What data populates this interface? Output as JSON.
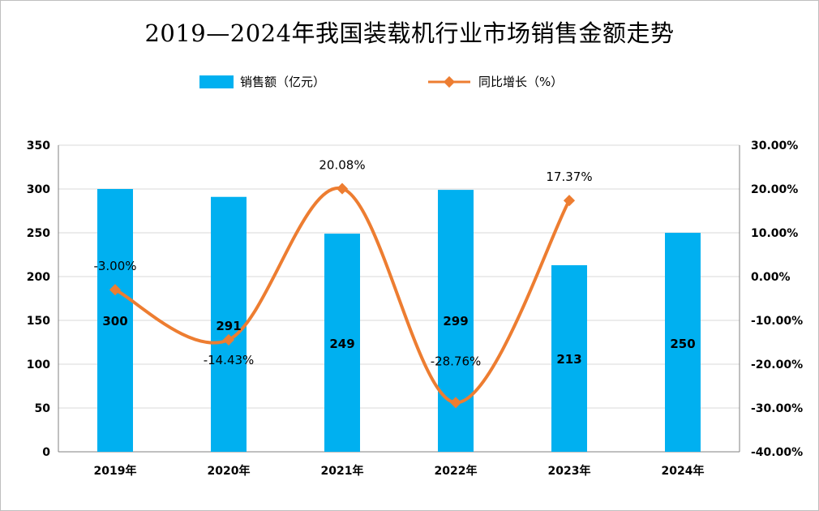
{
  "title": "2019—2024年我国装载机行业市场销售金额走势",
  "legend": {
    "bar_label": "销售额（亿元）",
    "line_label": "同比增长（%）"
  },
  "colors": {
    "bar": "#00b0f0",
    "line": "#ed7d31",
    "grid": "#d9d9d9",
    "axis": "#808080"
  },
  "chart_data": {
    "type": "bar",
    "categories": [
      "2019年",
      "2020年",
      "2021年",
      "2022年",
      "2023年",
      "2024年"
    ],
    "series": [
      {
        "name": "销售额（亿元）",
        "type": "bar",
        "axis": "left",
        "values": [
          300,
          291,
          249,
          299,
          213,
          250
        ],
        "labels": [
          "300",
          "291",
          "249",
          "299",
          "213",
          "250"
        ]
      },
      {
        "name": "同比增长（%）",
        "type": "line",
        "axis": "right",
        "smooth": true,
        "values": [
          -3.0,
          -14.43,
          20.08,
          -28.76,
          17.37,
          null
        ],
        "labels": [
          "-3.00%",
          "-14.43%",
          "20.08%",
          "-28.76%",
          "17.37%",
          ""
        ]
      }
    ],
    "y_left": {
      "min": 0,
      "max": 350,
      "step": 50,
      "ticks": [
        "0",
        "50",
        "100",
        "150",
        "200",
        "250",
        "300",
        "350"
      ]
    },
    "y_right": {
      "min": -40,
      "max": 30,
      "step": 10,
      "ticks": [
        "-40.00%",
        "-30.00%",
        "-20.00%",
        "-10.00%",
        "0.00%",
        "10.00%",
        "20.00%",
        "30.00%"
      ]
    },
    "grid": true,
    "legend_position": "top"
  }
}
